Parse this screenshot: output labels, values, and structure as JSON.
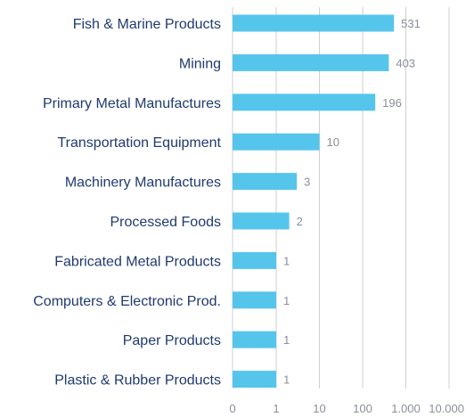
{
  "chart_data": {
    "type": "bar",
    "orientation": "horizontal",
    "x_scale": "log",
    "grid": true,
    "categories": [
      "Fish & Marine Products",
      "Mining",
      "Primary Metal Manufactures",
      "Transportation Equipment",
      "Machinery Manufactures",
      "Processed Foods",
      "Fabricated Metal Products",
      "Computers & Electronic Prod.",
      "Paper Products",
      "Plastic & Rubber Products"
    ],
    "values": [
      531,
      403,
      196,
      10,
      3,
      2,
      1,
      1,
      1,
      1
    ],
    "value_labels": [
      "531",
      "403",
      "196",
      "10",
      "3",
      "2",
      "1",
      "1",
      "1",
      "1"
    ],
    "bar_color": "#56c5ec",
    "x_ticks": [
      {
        "value": 0,
        "label": "0"
      },
      {
        "value": 1,
        "label": "1"
      },
      {
        "value": 10,
        "label": "10"
      },
      {
        "value": 100,
        "label": "100"
      },
      {
        "value": 1000,
        "label": "1.000"
      },
      {
        "value": 10000,
        "label": "10.000"
      }
    ]
  }
}
